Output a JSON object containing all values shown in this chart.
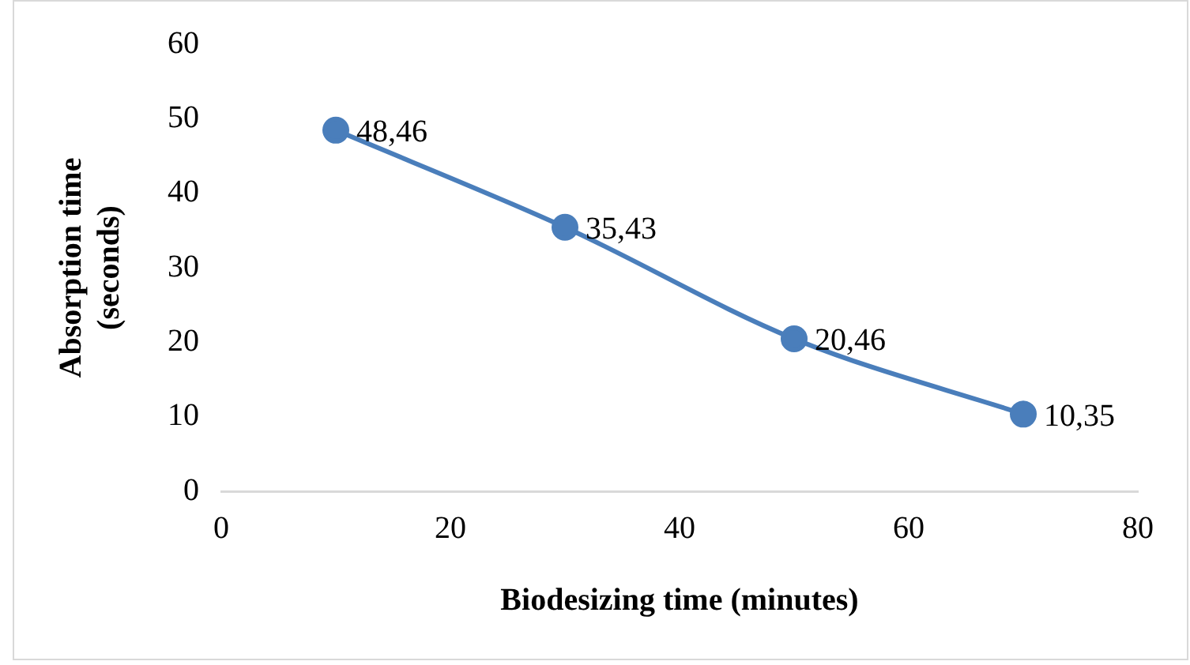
{
  "chart_data": {
    "type": "line",
    "xlabel": "Biodesizing time (minutes)",
    "ylabel": "Absorption time (seconds)",
    "x": [
      10,
      30,
      50,
      70
    ],
    "series": [
      {
        "color": "#4a7ebb",
        "values": [
          48.46,
          35.43,
          20.46,
          10.35
        ],
        "value_labels": [
          "48,46",
          "35,43",
          "20,46",
          "10,35"
        ]
      }
    ],
    "xlim": [
      0,
      80
    ],
    "xticks": [
      0,
      20,
      40,
      60,
      80
    ],
    "ylim": [
      0,
      60
    ],
    "yticks": [
      0,
      10,
      20,
      30,
      40,
      50,
      60
    ],
    "grid": false,
    "legend": false,
    "marker": "circle",
    "line_style": "solid"
  }
}
